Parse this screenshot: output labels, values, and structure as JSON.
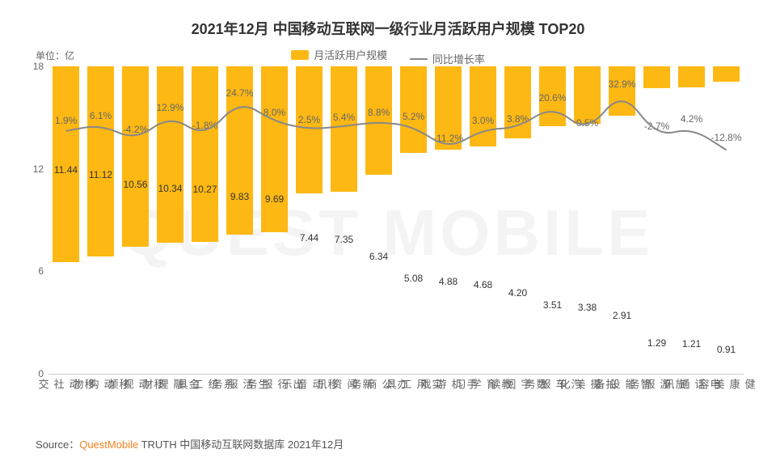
{
  "title": "2021年12月 中国移动互联网一级行业月活跃用户规模 TOP20",
  "unit_label": "单位：亿",
  "legend": {
    "bar_label": "月活跃用户规模",
    "line_label": "同比增长率"
  },
  "y_axis": {
    "ticks": [
      0,
      6,
      12,
      18
    ],
    "max": 18
  },
  "chart": {
    "type": "bar+line",
    "bar_color": "#fdb813",
    "line_color": "#888888",
    "baseline_color": "#cccccc",
    "bar_value_fontsize": 12,
    "growth_label_fontsize": 12,
    "categories": [
      {
        "label": "移动社交",
        "value": 11.44,
        "growth_pct": 1.9,
        "growth_label": "1.9%",
        "line_y": 0.79,
        "label_dy": -20
      },
      {
        "label": "移动购物",
        "value": 11.12,
        "growth_pct": 6.1,
        "growth_label": "6.1%",
        "line_y": 0.81,
        "label_dy": -18
      },
      {
        "label": "移动视频",
        "value": 10.56,
        "growth_pct": -4.2,
        "growth_label": "-4.2%",
        "line_y": 0.76,
        "label_dy": -20
      },
      {
        "label": "金融理财",
        "value": 10.34,
        "growth_pct": 12.9,
        "growth_label": "12.9%",
        "line_y": 0.84,
        "label_dy": -17
      },
      {
        "label": "系统工具",
        "value": 10.27,
        "growth_pct": -1.8,
        "growth_label": "-1.8%",
        "line_y": 0.77,
        "label_dy": -21
      },
      {
        "label": "生活服务",
        "value": 9.83,
        "growth_pct": 24.7,
        "growth_label": "24.7%",
        "line_y": 0.89,
        "label_dy": -16
      },
      {
        "label": "出行服务",
        "value": 9.69,
        "growth_pct": 8.0,
        "growth_label": "8.0%",
        "line_y": 0.82,
        "label_dy": -18
      },
      {
        "label": "移动音乐",
        "value": 7.44,
        "growth_pct": 2.5,
        "growth_label": "2.5%",
        "line_y": 0.795,
        "label_dy": -19
      },
      {
        "label": "新闻资讯",
        "value": 7.35,
        "growth_pct": 5.4,
        "growth_label": "5.4%",
        "line_y": 0.805,
        "label_dy": -18
      },
      {
        "label": "办公商务",
        "value": 6.34,
        "growth_pct": 8.8,
        "growth_label": "8.8%",
        "line_y": 0.82,
        "label_dy": -18
      },
      {
        "label": "实用工具",
        "value": 5.08,
        "growth_pct": 5.2,
        "growth_label": "5.2%",
        "line_y": 0.805,
        "label_dy": -19
      },
      {
        "label": "手机游戏",
        "value": 4.88,
        "growth_pct": -11.2,
        "growth_label": "-11.2%",
        "line_y": 0.73,
        "label_dy": -21
      },
      {
        "label": "教育学习",
        "value": 4.68,
        "growth_pct": 3.0,
        "growth_label": "3.0%",
        "line_y": 0.795,
        "label_dy": -18
      },
      {
        "label": "数字阅读",
        "value": 4.2,
        "growth_pct": 3.8,
        "growth_label": "3.8%",
        "line_y": 0.8,
        "label_dy": -18
      },
      {
        "label": "汽车服务",
        "value": 3.51,
        "growth_pct": 20.6,
        "growth_label": "20.6%",
        "line_y": 0.872,
        "label_dy": -17
      },
      {
        "label": "拍摄美化",
        "value": 3.38,
        "growth_pct": 0.5,
        "growth_label": "0.5%",
        "line_y": 0.785,
        "label_dy": -19
      },
      {
        "label": "智能设备",
        "value": 2.91,
        "growth_pct": 32.9,
        "growth_label": "32.9%",
        "line_y": 0.922,
        "label_dy": -15
      },
      {
        "label": "旅游服务",
        "value": 1.29,
        "growth_pct": -2.7,
        "growth_label": "-2.7%",
        "line_y": 0.772,
        "label_dy": -20
      },
      {
        "label": "电话通讯",
        "value": 1.21,
        "growth_pct": 4.2,
        "growth_label": "4.2%",
        "line_y": 0.8,
        "label_dy": -18
      },
      {
        "label": "健康美容",
        "value": 0.91,
        "growth_pct": -12.8,
        "growth_label": "-12.8%",
        "line_y": 0.728,
        "label_dy": -22
      }
    ]
  },
  "source": {
    "prefix": "Source：",
    "brand": "QuestMobile",
    "rest": " TRUTH 中国移动互联网数据库 2021年12月",
    "brand_color": "#f58220"
  },
  "watermark": "QUEST MOBILE",
  "colors": {
    "text_primary": "#333333",
    "text_secondary": "#666666",
    "background": "#ffffff"
  }
}
